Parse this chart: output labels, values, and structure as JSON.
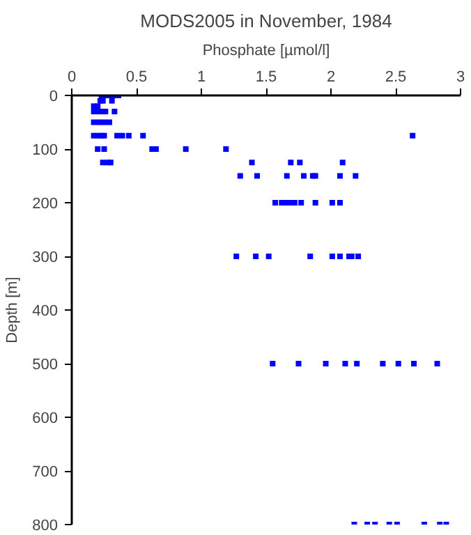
{
  "chart_data": {
    "type": "scatter",
    "title": "MODS2005 in November, 1984",
    "xlabel": "Phosphate [µmol/l]",
    "ylabel": "Depth [m]",
    "xlim": [
      0,
      3
    ],
    "xticks": [
      0,
      {
        "value": 0.5,
        "label": "0.5"
      },
      1,
      {
        "value": 1.5,
        "label": "1.5"
      },
      2,
      {
        "value": 2.5,
        "label": "2.5"
      },
      3
    ],
    "ylim": [
      800,
      0
    ],
    "yticks": [
      0,
      100,
      200,
      300,
      400,
      500,
      600,
      700,
      800
    ],
    "grid": false,
    "marker": "square",
    "series": [
      {
        "color": "#0000ff",
        "x": [
          0.23,
          0.26,
          0.29,
          0.32,
          0.36,
          0.22,
          0.24,
          0.31,
          0.17,
          0.2,
          0.17,
          0.2,
          0.23,
          0.26,
          0.33,
          0.17,
          0.21,
          0.25,
          0.29,
          0.17,
          0.2,
          0.23,
          0.25,
          0.35,
          0.39,
          0.44,
          0.55,
          2.63,
          0.2,
          0.25,
          0.62,
          0.65,
          0.88,
          1.19,
          0.24,
          0.28,
          0.3,
          1.39,
          1.69,
          1.76,
          2.09,
          1.3,
          1.43,
          1.66,
          1.79,
          1.86,
          1.88,
          2.07,
          2.19,
          1.57,
          1.62,
          1.66,
          1.7,
          1.72,
          1.77,
          1.88,
          2.01,
          2.07,
          1.27,
          1.42,
          1.52,
          1.84,
          2.01,
          2.07,
          2.14,
          2.16,
          2.21,
          1.55,
          1.75,
          1.96,
          2.11,
          2.2,
          2.4,
          2.52,
          2.64,
          2.82,
          2.18,
          2.28,
          2.34,
          2.45,
          2.51,
          2.72,
          2.84,
          2.89
        ],
        "values": [
          0,
          0,
          0,
          0,
          0,
          10,
          10,
          10,
          20,
          20,
          30,
          30,
          30,
          30,
          30,
          50,
          50,
          50,
          50,
          75,
          75,
          75,
          75,
          75,
          75,
          75,
          75,
          75,
          100,
          100,
          100,
          100,
          100,
          100,
          125,
          125,
          125,
          125,
          125,
          125,
          125,
          150,
          150,
          150,
          150,
          150,
          150,
          150,
          150,
          200,
          200,
          200,
          200,
          200,
          200,
          200,
          200,
          200,
          300,
          300,
          300,
          300,
          300,
          300,
          300,
          300,
          300,
          500,
          500,
          500,
          500,
          500,
          500,
          500,
          500,
          500,
          800,
          800,
          800,
          800,
          800,
          800,
          800,
          800
        ]
      }
    ]
  }
}
